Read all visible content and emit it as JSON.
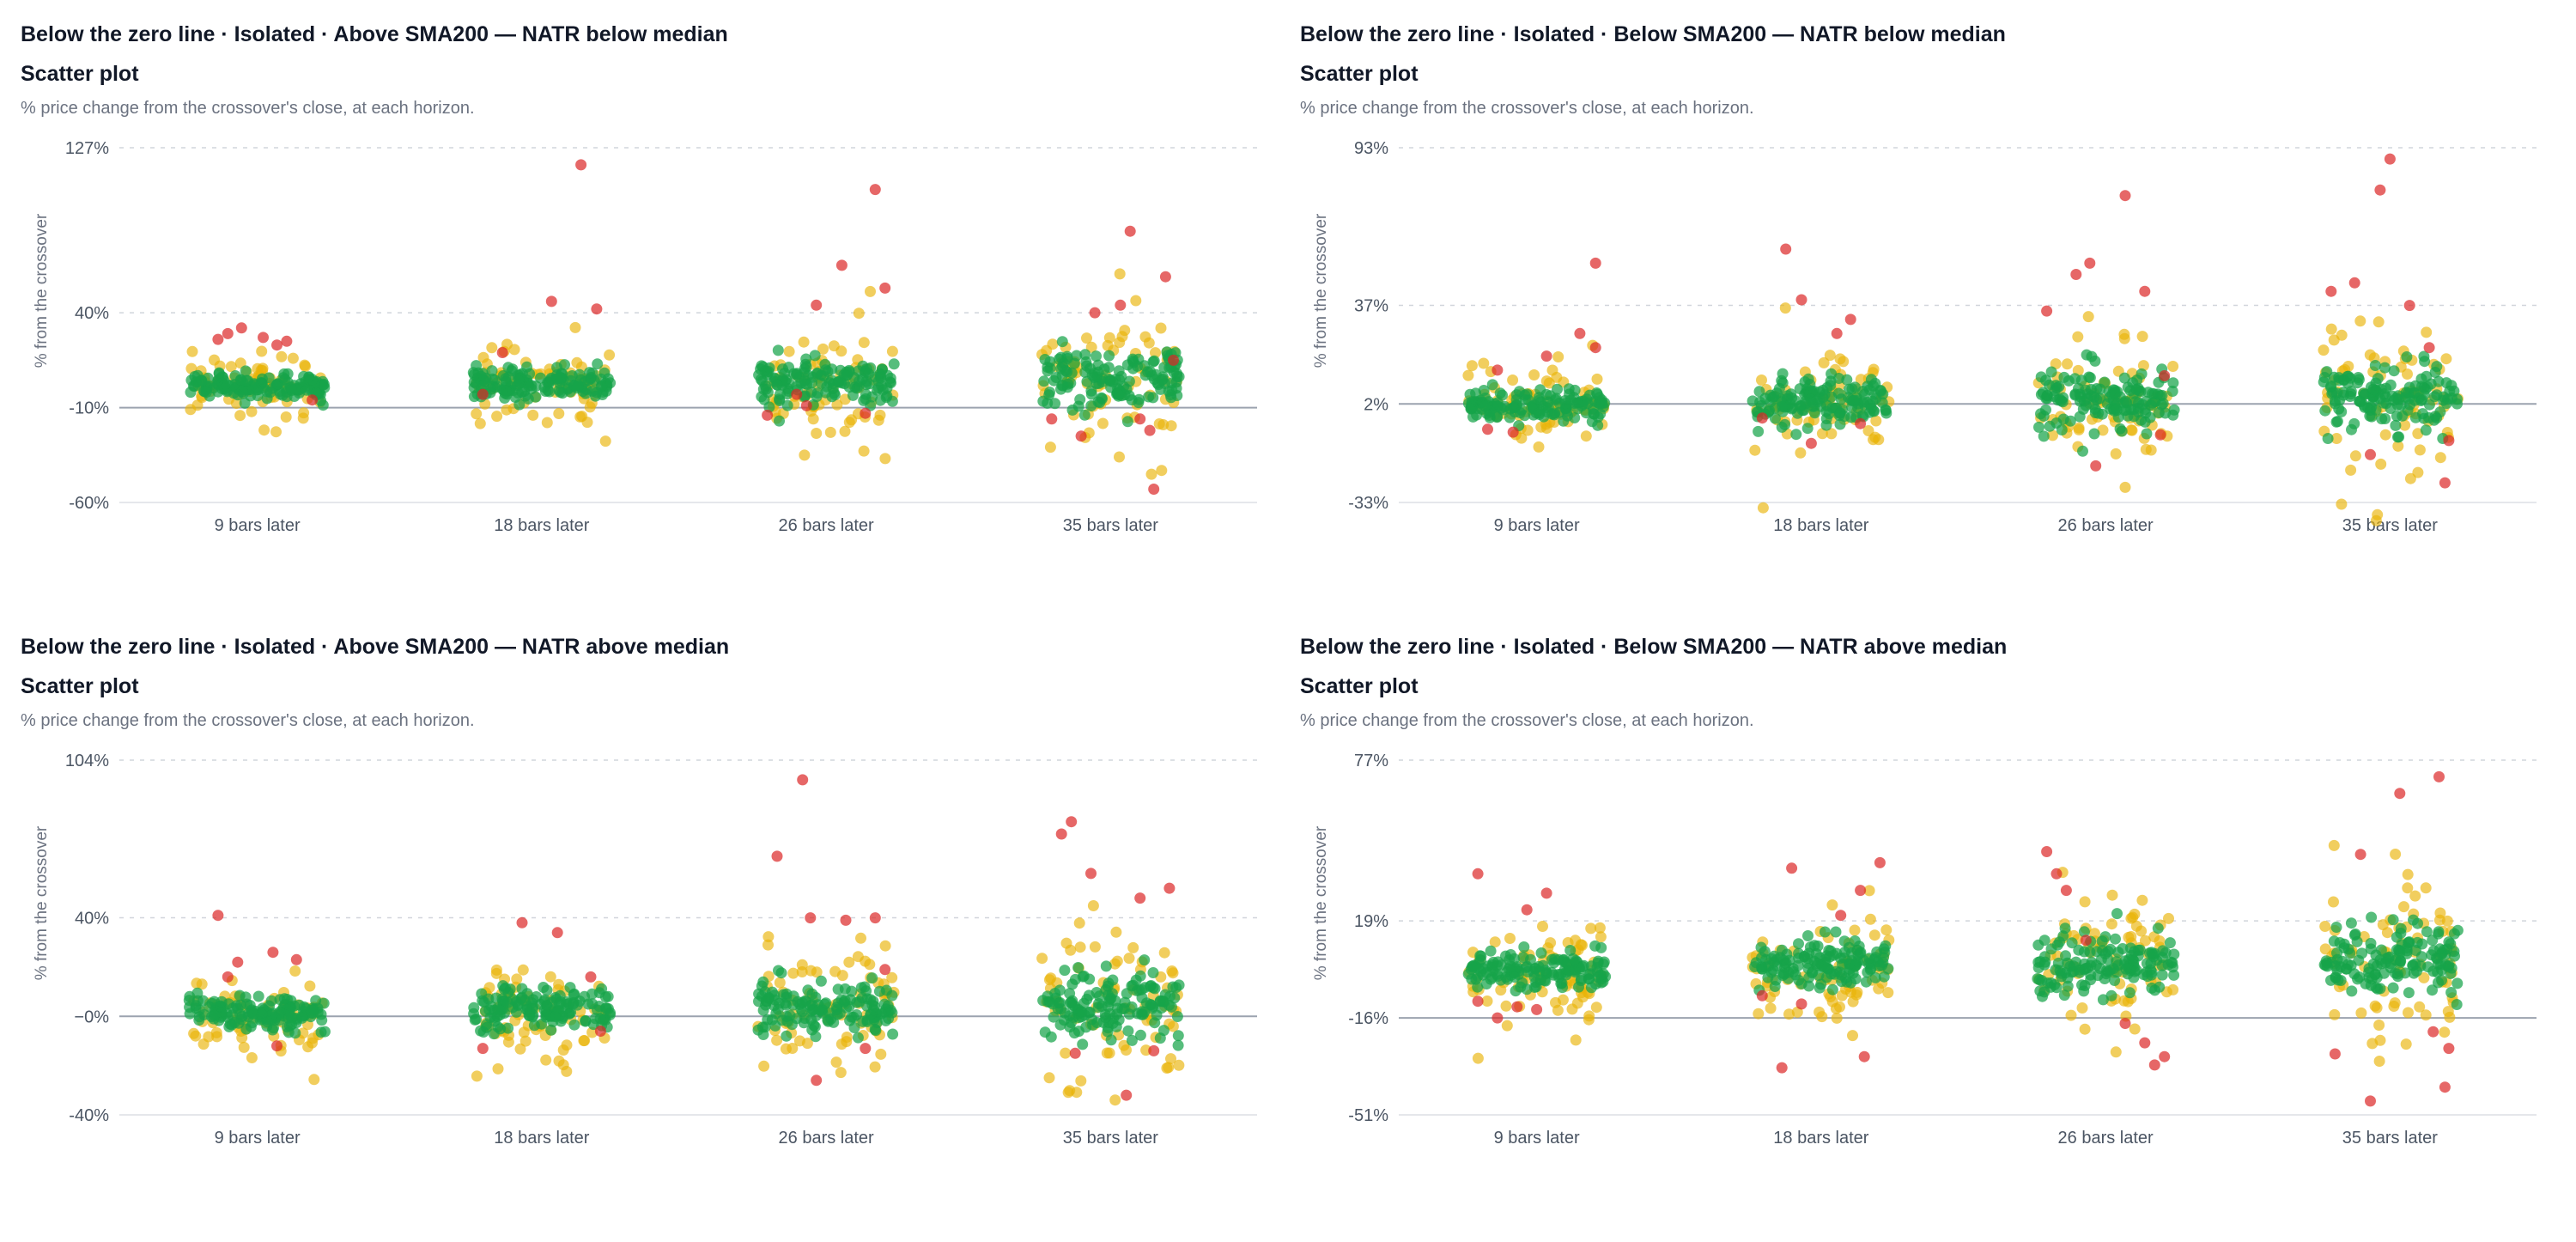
{
  "colors": {
    "green": "#16a34a",
    "yellow": "#eab308",
    "red": "#dc2626",
    "grid": "#d1d5db",
    "zero": "#9ca3af"
  },
  "panels": [
    {
      "title": "Below the zero line · Isolated · Above SMA200 — NATR below median",
      "subtitle": "Scatter plot",
      "description": "% price change from the crossover's close, at each horizon.",
      "chart_data": {
        "type": "scatter",
        "ylabel": "% from the crossover",
        "categories": [
          "9 bars later",
          "18 bars later",
          "26 bars later",
          "35 bars later"
        ],
        "ylim": [
          -60,
          127
        ],
        "yticks": [
          {
            "v": 127,
            "label": "127%"
          },
          {
            "v": 40,
            "label": "40%"
          },
          {
            "v": -10,
            "label": "-10%"
          },
          {
            "v": -60,
            "label": "-60%"
          }
        ],
        "spreads": [
          8,
          10,
          14,
          18
        ],
        "outliers": [
          [
            [
              -20,
              26
            ],
            [
              -15,
              29
            ],
            [
              -8,
              32
            ],
            [
              3,
              27
            ],
            [
              10,
              23
            ],
            [
              15,
              25
            ],
            [
              28,
              -6
            ]
          ],
          [
            [
              -30,
              -3
            ],
            [
              5,
              46
            ],
            [
              28,
              42
            ],
            [
              -20,
              19
            ],
            [
              20,
              118
            ]
          ],
          [
            [
              -30,
              -14
            ],
            [
              -10,
              -9
            ],
            [
              -5,
              44
            ],
            [
              8,
              65
            ],
            [
              30,
              53
            ],
            [
              -15,
              -3
            ],
            [
              20,
              -13
            ],
            [
              25,
              105
            ]
          ],
          [
            [
              -30,
              -16
            ],
            [
              -15,
              -25
            ],
            [
              5,
              44
            ],
            [
              10,
              83
            ],
            [
              20,
              -22
            ],
            [
              28,
              59
            ],
            [
              -8,
              40
            ],
            [
              32,
              15
            ],
            [
              22,
              -53
            ],
            [
              15,
              -16
            ]
          ]
        ]
      }
    },
    {
      "title": "Below the zero line · Isolated · Below SMA200 — NATR below median",
      "subtitle": "Scatter plot",
      "description": "% price change from the crossover's close, at each horizon.",
      "chart_data": {
        "type": "scatter",
        "ylabel": "% from the crossover",
        "categories": [
          "9 bars later",
          "18 bars later",
          "26 bars later",
          "35 bars later"
        ],
        "ylim": [
          -33,
          93
        ],
        "yticks": [
          {
            "v": 93,
            "label": "93%"
          },
          {
            "v": 37,
            "label": "37%"
          },
          {
            "v": 2,
            "label": "2%"
          },
          {
            "v": -33,
            "label": "-33%"
          }
        ],
        "spreads": [
          6,
          9,
          12,
          14
        ],
        "outliers": [
          [
            [
              -25,
              -7
            ],
            [
              -12,
              -8
            ],
            [
              5,
              19
            ],
            [
              -20,
              14
            ],
            [
              30,
              52
            ],
            [
              30,
              22
            ],
            [
              22,
              27
            ]
          ],
          [
            [
              -30,
              -3
            ],
            [
              -18,
              57
            ],
            [
              -10,
              39
            ],
            [
              8,
              27
            ],
            [
              20,
              -5
            ],
            [
              -5,
              -12
            ],
            [
              15,
              32
            ]
          ],
          [
            [
              -30,
              35
            ],
            [
              -15,
              48
            ],
            [
              -8,
              52
            ],
            [
              10,
              76
            ],
            [
              20,
              42
            ],
            [
              28,
              -9
            ],
            [
              -5,
              -20
            ],
            [
              30,
              12
            ]
          ],
          [
            [
              -30,
              42
            ],
            [
              -18,
              45
            ],
            [
              -5,
              78
            ],
            [
              0,
              89
            ],
            [
              10,
              37
            ],
            [
              30,
              -11
            ],
            [
              -10,
              -16
            ],
            [
              28,
              -26
            ],
            [
              20,
              22
            ]
          ]
        ]
      }
    },
    {
      "title": "Below the zero line · Isolated · Above SMA200 — NATR above median",
      "subtitle": "Scatter plot",
      "description": "% price change from the crossover's close, at each horizon.",
      "chart_data": {
        "type": "scatter",
        "ylabel": "% from the crossover",
        "categories": [
          "9 bars later",
          "18 bars later",
          "26 bars later",
          "35 bars later"
        ],
        "ylim": [
          -40,
          104
        ],
        "yticks": [
          {
            "v": 104,
            "label": "104%"
          },
          {
            "v": 40,
            "label": "40%"
          },
          {
            "v": 0,
            "label": "−0%"
          },
          {
            "v": -40,
            "label": "-40%"
          }
        ],
        "spreads": [
          7,
          10,
          12,
          16
        ],
        "outliers": [
          [
            [
              -20,
              41
            ],
            [
              -15,
              16
            ],
            [
              8,
              26
            ],
            [
              20,
              23
            ],
            [
              -10,
              22
            ],
            [
              10,
              -12
            ]
          ],
          [
            [
              -30,
              -13
            ],
            [
              -10,
              38
            ],
            [
              8,
              34
            ],
            [
              25,
              16
            ],
            [
              30,
              -6
            ]
          ],
          [
            [
              -25,
              65
            ],
            [
              -12,
              96
            ],
            [
              -8,
              40
            ],
            [
              10,
              39
            ],
            [
              25,
              40
            ],
            [
              -5,
              -26
            ],
            [
              20,
              -13
            ],
            [
              30,
              19
            ]
          ],
          [
            [
              -25,
              74
            ],
            [
              -20,
              79
            ],
            [
              -10,
              58
            ],
            [
              15,
              48
            ],
            [
              30,
              52
            ],
            [
              -18,
              -15
            ],
            [
              8,
              -32
            ],
            [
              22,
              -14
            ]
          ]
        ]
      }
    },
    {
      "title": "Below the zero line · Isolated · Below SMA200 — NATR above median",
      "subtitle": "Scatter plot",
      "description": "% price change from the crossover's close, at each horizon.",
      "chart_data": {
        "type": "scatter",
        "ylabel": "% from the crossover",
        "categories": [
          "9 bars later",
          "18 bars later",
          "26 bars later",
          "35 bars later"
        ],
        "ylim": [
          -51,
          77
        ],
        "yticks": [
          {
            "v": 77,
            "label": "77%"
          },
          {
            "v": 19,
            "label": "19%"
          },
          {
            "v": -16,
            "label": "-16%"
          },
          {
            "v": -51,
            "label": "-51%"
          }
        ],
        "spreads": [
          8,
          10,
          12,
          14
        ],
        "outliers": [
          [
            [
              -30,
              36
            ],
            [
              -5,
              23
            ],
            [
              5,
              29
            ],
            [
              -30,
              -10
            ],
            [
              -20,
              -16
            ],
            [
              -10,
              -12
            ],
            [
              0,
              -13
            ]
          ],
          [
            [
              -30,
              -8
            ],
            [
              -20,
              -34
            ],
            [
              -10,
              -11
            ],
            [
              10,
              21
            ],
            [
              20,
              30
            ],
            [
              30,
              40
            ],
            [
              22,
              -30
            ],
            [
              -15,
              38
            ]
          ],
          [
            [
              -30,
              44
            ],
            [
              -25,
              36
            ],
            [
              -20,
              30
            ],
            [
              10,
              -18
            ],
            [
              20,
              -25
            ],
            [
              25,
              -33
            ],
            [
              30,
              -30
            ],
            [
              -10,
              12
            ]
          ],
          [
            [
              -28,
              -29
            ],
            [
              -15,
              43
            ],
            [
              -10,
              -46
            ],
            [
              5,
              65
            ],
            [
              25,
              71
            ],
            [
              30,
              -27
            ],
            [
              28,
              -41
            ],
            [
              22,
              -21
            ]
          ]
        ]
      }
    }
  ]
}
